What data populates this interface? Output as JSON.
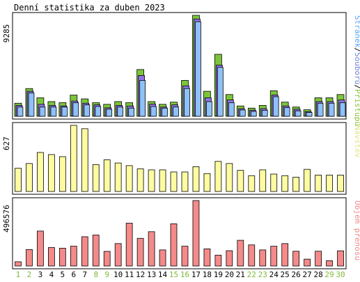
{
  "chart_data": {
    "type": "bar",
    "title": "Denní statistika za duben 2023",
    "categories": [
      "1",
      "2",
      "3",
      "4",
      "5",
      "6",
      "7",
      "8",
      "9",
      "10",
      "11",
      "12",
      "13",
      "14",
      "15",
      "16",
      "17",
      "18",
      "19",
      "20",
      "21",
      "22",
      "23",
      "24",
      "25",
      "26",
      "27",
      "28",
      "29",
      "30"
    ],
    "weekend_days": [
      "1",
      "2",
      "8",
      "9",
      "15",
      "16",
      "22",
      "23",
      "29",
      "30"
    ],
    "panels": [
      {
        "id": "top",
        "max_label": "9285",
        "ylim": [
          0,
          9285
        ],
        "right_label": [
          {
            "text": "Stránek",
            "color": "#5aa7f5"
          },
          {
            "text": "/",
            "color": "#000000"
          },
          {
            "text": "Souborů",
            "color": "#6f82d8"
          },
          {
            "text": "/",
            "color": "#000000"
          },
          {
            "text": "Přístupů",
            "color": "#88c43a"
          }
        ],
        "series": [
          {
            "name": "Přístupů",
            "color": "#7cc53b",
            "values": [
              1200,
              2550,
              1700,
              1350,
              1250,
              1950,
              1600,
              1250,
              1100,
              1350,
              1250,
              4300,
              1350,
              1100,
              1300,
              3300,
              9285,
              2300,
              5700,
              2000,
              950,
              750,
              1000,
              2350,
              1300,
              850,
              600,
              1700,
              1700,
              2000
            ]
          },
          {
            "name": "Souborů",
            "color": "#8f73e3",
            "values": [
              1000,
              2300,
              1100,
              1000,
              950,
              1400,
              1200,
              1050,
              780,
              1000,
              950,
              3750,
              1120,
              850,
              1050,
              2800,
              8950,
              1700,
              4700,
              1500,
              700,
              560,
              700,
              1950,
              950,
              650,
              430,
              1350,
              1350,
              1500
            ]
          },
          {
            "name": "Stránek",
            "color": "#8ec1f7",
            "values": [
              850,
              2150,
              850,
              850,
              850,
              1250,
              1050,
              900,
              650,
              850,
              750,
              3300,
              900,
              750,
              850,
              2550,
              8700,
              1350,
              4500,
              1250,
              580,
              450,
              550,
              1800,
              800,
              500,
              350,
              1200,
              1200,
              1250
            ]
          }
        ]
      },
      {
        "id": "middle",
        "max_label": "627",
        "ylim": [
          0,
          627
        ],
        "right_label": [
          {
            "text": "Návštěv",
            "color": "#e4e38a"
          }
        ],
        "series": [
          {
            "name": "Návštěv",
            "color": "#fefba0",
            "values": [
              220,
              265,
              370,
              350,
              330,
              627,
              595,
              255,
              300,
              270,
              245,
              215,
              205,
              205,
              185,
              185,
              235,
              170,
              285,
              265,
              200,
              150,
              205,
              165,
              150,
              135,
              210,
              155,
              155,
              155
            ]
          }
        ]
      },
      {
        "id": "bottom",
        "max_label": "496576",
        "ylim": [
          0,
          496576
        ],
        "right_label": [
          {
            "text": "Objem přenosu",
            "color": "#f08a8a"
          }
        ],
        "series": [
          {
            "name": "Objem přenosu",
            "color": "#f48a8a",
            "values": [
              32000,
              125000,
              265000,
              140000,
              135000,
              150000,
              222000,
              235000,
              111000,
              170000,
              325000,
              210000,
              260000,
              122000,
              320000,
              150000,
              496576,
              130000,
              82000,
              116000,
              195000,
              160000,
              122000,
              150000,
              170000,
              112000,
              52000,
              112000,
              40000,
              115000
            ]
          }
        ]
      }
    ]
  }
}
